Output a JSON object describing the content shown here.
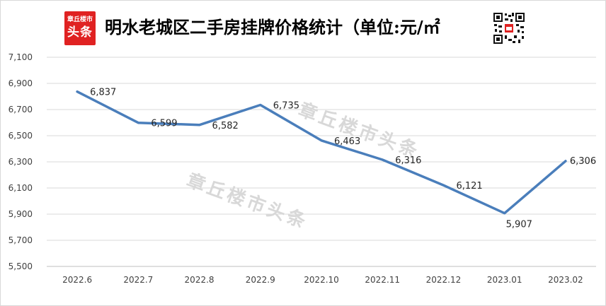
{
  "logo": {
    "line1": "章丘楼市",
    "line2": "头条"
  },
  "watermark": "章丘楼市头条",
  "chart_data": {
    "type": "line",
    "title": "明水老城区二手房挂牌价格统计（单位:元/㎡",
    "categories": [
      "2022.6",
      "2022.7",
      "2022.8",
      "2022.9",
      "2022.10",
      "2022.11",
      "2022.12",
      "2023.01",
      "2023.02"
    ],
    "series": [
      {
        "values": [
          6837,
          6599,
          6582,
          6735,
          6463,
          6316,
          6121,
          5907,
          6306
        ],
        "labels": [
          "6,837",
          "6,599",
          "6,582",
          "6,735",
          "6,463",
          "6,316",
          "6,121",
          "5,907",
          "6,306"
        ]
      }
    ],
    "ylim": [
      5500,
      7100
    ],
    "yticks": [
      5500,
      5700,
      5900,
      6100,
      6300,
      6500,
      6700,
      6900,
      7100
    ],
    "ytick_labels": [
      "5,500",
      "5,700",
      "5,900",
      "6,100",
      "6,300",
      "6,500",
      "6,700",
      "6,900",
      "7,100"
    ],
    "xlabel": "",
    "ylabel": "",
    "grid": true,
    "line_color": "#4a7ebb"
  }
}
